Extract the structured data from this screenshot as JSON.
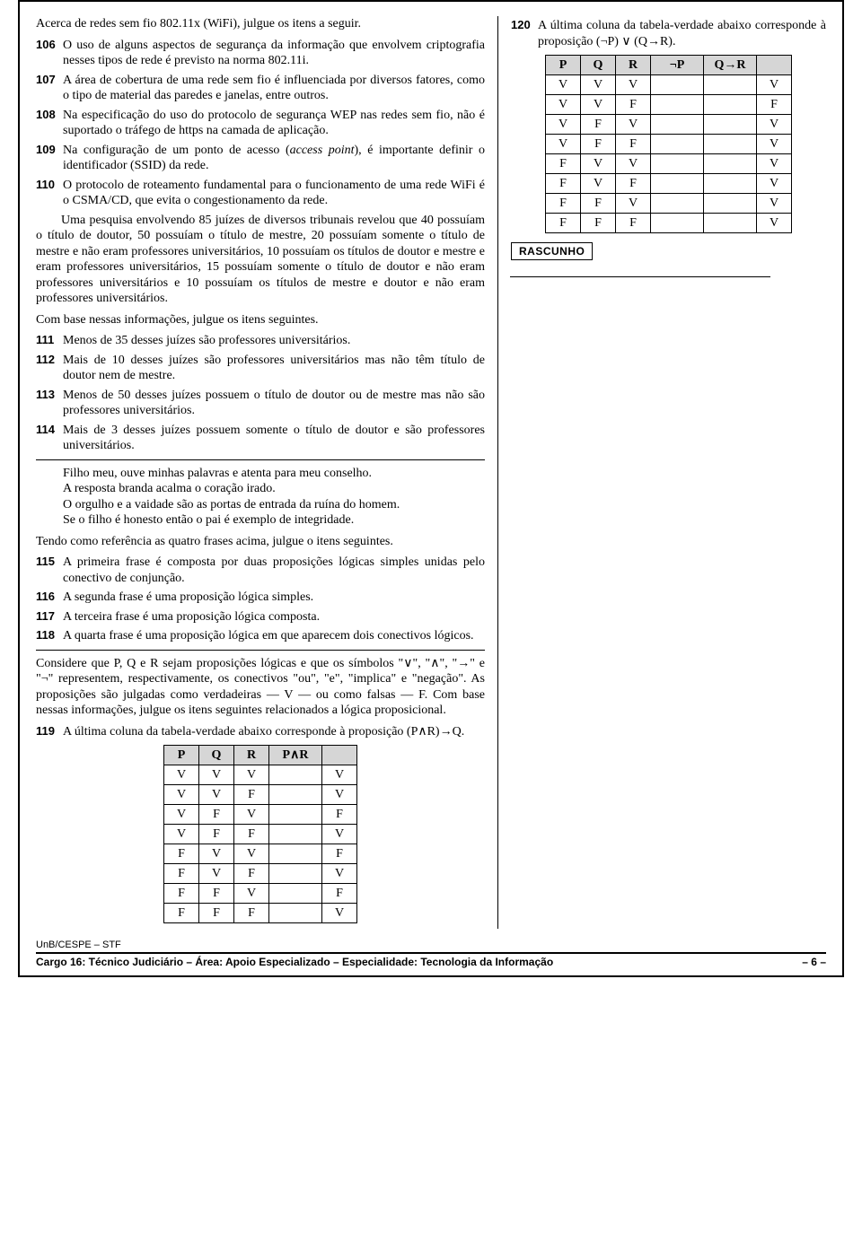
{
  "intro": "Acerca de redes sem fio 802.11x (WiFi), julgue os itens a seguir.",
  "items_a": [
    {
      "n": "106",
      "t": "O uso de alguns aspectos de segurança da informação que envolvem criptografia nesses tipos de rede é previsto na norma 802.11i."
    },
    {
      "n": "107",
      "t": "A área de cobertura de uma rede sem fio é influenciada por diversos fatores, como o tipo de material das paredes e janelas, entre outros."
    },
    {
      "n": "108",
      "t": "Na especificação do uso do protocolo de segurança WEP nas redes sem fio, não é suportado o tráfego de https na camada de aplicação."
    },
    {
      "n": "109",
      "t": "Na configuração de um ponto de acesso (<em class=\"it\">access point</em>), é importante definir o identificador (SSID) da rede."
    },
    {
      "n": "110",
      "t": "O protocolo de roteamento fundamental para o funcionamento de uma rede WiFi é o CSMA/CD, que evita o congestionamento da rede."
    }
  ],
  "research_para": "Uma pesquisa envolvendo 85 juízes de diversos tribunais revelou que 40 possuíam o título de doutor, 50 possuíam o título de mestre, 20 possuíam somente o título de mestre e não eram professores universitários, 10 possuíam os títulos de doutor e mestre e eram professores universitários, 15 possuíam somente o título de doutor e não eram professores universitários e 10 possuíam os títulos de mestre e doutor e não eram professores universitários.",
  "research_lead": "Com base nessas informações, julgue os itens seguintes.",
  "items_b": [
    {
      "n": "111",
      "t": "Menos de 35 desses juízes são professores universitários."
    },
    {
      "n": "112",
      "t": "Mais de 10 desses juízes são professores universitários mas não têm título de doutor nem de mestre."
    },
    {
      "n": "113",
      "t": "Menos de 50 desses juízes possuem o título de doutor ou de mestre mas não são professores universitários."
    },
    {
      "n": "114",
      "t": "Mais de 3 desses juízes possuem somente o título de doutor e são professores universitários."
    }
  ],
  "quote_lines": [
    "Filho meu, ouve minhas palavras e atenta para meu conselho.",
    "A resposta branda acalma o coração irado.",
    "O orgulho e a vaidade são as portas de entrada da ruína do homem.",
    "Se o filho é honesto então o pai é exemplo de integridade."
  ],
  "quote_lead": "Tendo como referência as quatro frases acima, julgue o itens seguintes.",
  "items_c": [
    {
      "n": "115",
      "t": "A primeira frase é composta por duas proposições lógicas simples unidas pelo conectivo de conjunção."
    },
    {
      "n": "116",
      "t": "A segunda frase é uma proposição lógica simples."
    },
    {
      "n": "117",
      "t": "A terceira frase é uma proposição lógica composta."
    },
    {
      "n": "118",
      "t": "A quarta frase é uma proposição lógica em que aparecem dois conectivos lógicos."
    }
  ],
  "logic_para": "Considere que P, Q e R sejam proposições lógicas e que os símbolos \"∨\", \"∧\", \"→\" e \"¬\" representem, respectivamente, os conectivos \"ou\", \"e\", \"implica\" e \"negação\". As proposições são julgadas como verdadeiras — V — ou como falsas — F. Com base nessas informações, julgue os itens seguintes relacionados a lógica proposicional.",
  "item119": {
    "n": "119",
    "t": "A última coluna da tabela-verdade abaixo corresponde à proposição (P∧R)→Q."
  },
  "table119": {
    "headers": [
      "P",
      "Q",
      "R",
      "P∧R",
      ""
    ],
    "rows": [
      [
        "V",
        "V",
        "V",
        "",
        "V"
      ],
      [
        "V",
        "V",
        "F",
        "",
        "V"
      ],
      [
        "V",
        "F",
        "V",
        "",
        "F"
      ],
      [
        "V",
        "F",
        "F",
        "",
        "V"
      ],
      [
        "F",
        "V",
        "V",
        "",
        "F"
      ],
      [
        "F",
        "V",
        "F",
        "",
        "V"
      ],
      [
        "F",
        "F",
        "V",
        "",
        "F"
      ],
      [
        "F",
        "F",
        "F",
        "",
        "V"
      ]
    ]
  },
  "item120": {
    "n": "120",
    "t": "A última coluna da tabela-verdade abaixo corresponde à proposição (¬P) ∨ (Q→R)."
  },
  "table120": {
    "headers": [
      "P",
      "Q",
      "R",
      "¬P",
      "Q→R",
      ""
    ],
    "rows": [
      [
        "V",
        "V",
        "V",
        "",
        "",
        "V"
      ],
      [
        "V",
        "V",
        "F",
        "",
        "",
        "F"
      ],
      [
        "V",
        "F",
        "V",
        "",
        "",
        "V"
      ],
      [
        "V",
        "F",
        "F",
        "",
        "",
        "V"
      ],
      [
        "F",
        "V",
        "V",
        "",
        "",
        "V"
      ],
      [
        "F",
        "V",
        "F",
        "",
        "",
        "V"
      ],
      [
        "F",
        "F",
        "V",
        "",
        "",
        "V"
      ],
      [
        "F",
        "F",
        "F",
        "",
        "",
        "V"
      ]
    ]
  },
  "rascunho": "RASCUNHO",
  "footer": {
    "org": "UnB/CESPE – STF",
    "cargo": "Cargo 16: Técnico Judiciário – Área: Apoio Especializado – Especialidade: Tecnologia da Informação",
    "page": "– 6 –"
  }
}
